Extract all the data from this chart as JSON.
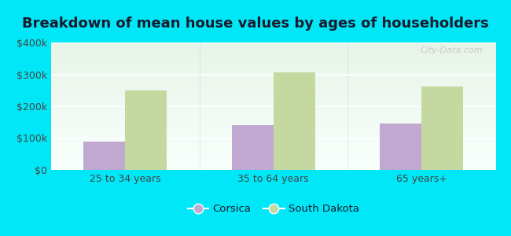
{
  "title": "Breakdown of mean house values by ages of householders",
  "categories": [
    "25 to 34 years",
    "35 to 64 years",
    "65 years+"
  ],
  "corsica_values": [
    90000,
    140000,
    145000
  ],
  "sd_values": [
    250000,
    305000,
    262000
  ],
  "corsica_color": "#c0a8d0",
  "sd_color": "#c5d8a0",
  "ylim": [
    0,
    400000
  ],
  "yticks": [
    0,
    100000,
    200000,
    300000,
    400000
  ],
  "ytick_labels": [
    "$0",
    "$100k",
    "$200k",
    "$300k",
    "$400k"
  ],
  "legend_corsica": "Corsica",
  "legend_sd": "South Dakota",
  "background_outer": "#00e8f8",
  "bar_width": 0.28,
  "title_fontsize": 13,
  "watermark": "City-Data.com"
}
